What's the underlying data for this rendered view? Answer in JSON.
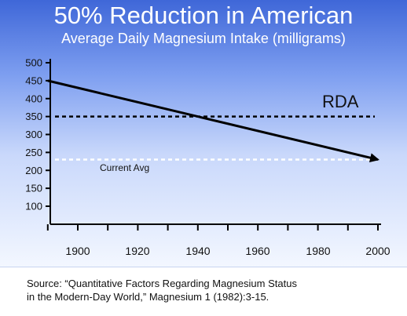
{
  "chart_data": {
    "type": "line",
    "title": "50% Reduction in American",
    "subtitle": "Average Daily Magnesium Intake (milligrams)",
    "xlabel": "",
    "ylabel": "",
    "x_range": [
      1890,
      2000
    ],
    "ylim": [
      50,
      500
    ],
    "x_ticks": [
      1900,
      1920,
      1940,
      1960,
      1980,
      2000
    ],
    "y_ticks": [
      100,
      150,
      200,
      250,
      300,
      350,
      400,
      450,
      500
    ],
    "grid": false,
    "series": [
      {
        "x": [
          1890,
          2000
        ],
        "values": [
          450,
          230
        ],
        "color": "#000000",
        "arrow": true
      }
    ],
    "reference_lines": [
      {
        "label": "RDA",
        "value": 350,
        "color": "#000000",
        "style": "dashed"
      },
      {
        "label": "Current Avg",
        "value": 230,
        "color": "#ffffff",
        "style": "dashed"
      }
    ]
  },
  "source": {
    "line1": "Source: “Quantitative Factors Regarding Magnesium Status",
    "line2": "in the Modern-Day World,” Magnesium 1 (1982):3-15."
  }
}
